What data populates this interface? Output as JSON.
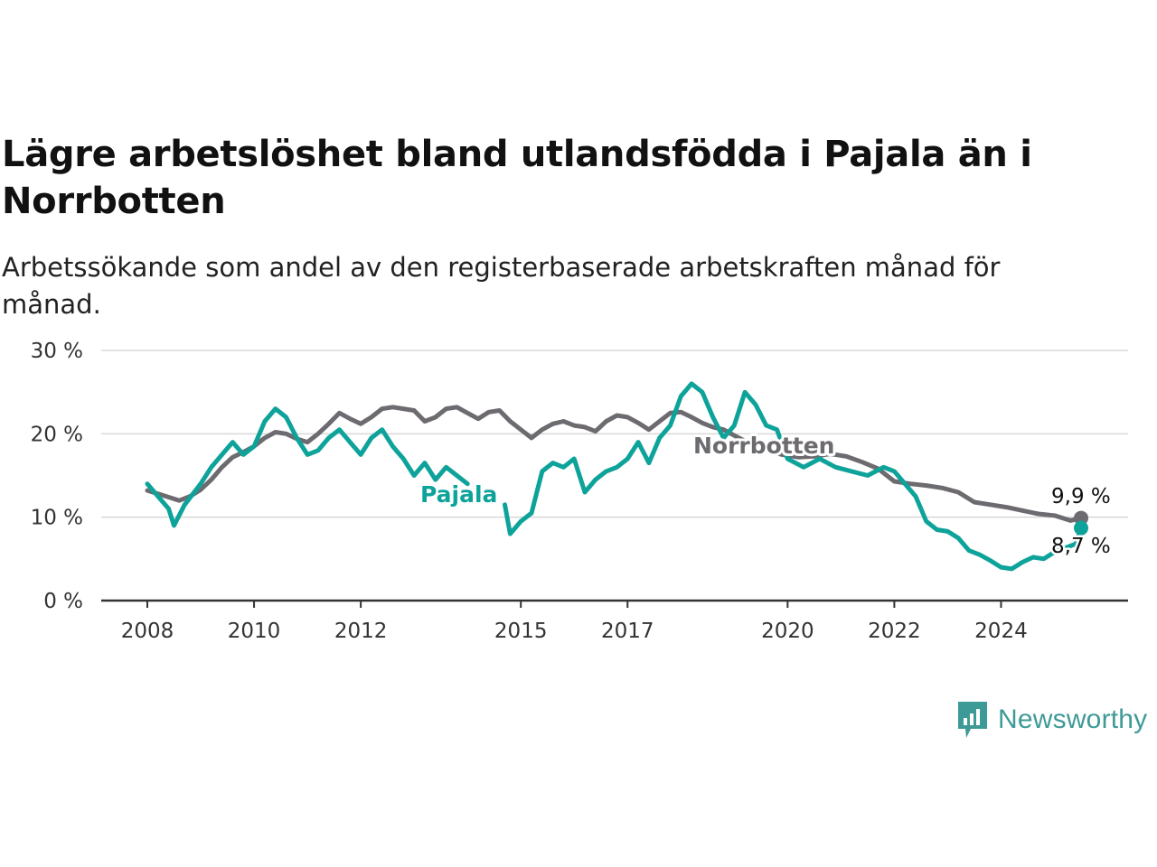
{
  "colors": {
    "pajala": "#0ea39a",
    "norrbotten": "#6d6a70",
    "grid": "#d8d8d8",
    "axis": "#333333",
    "brand": "#3e9a97"
  },
  "brand": {
    "name": "Newsworthy",
    "icon": "newsworthy-logo-icon"
  },
  "chart_data": {
    "type": "line",
    "title": "Lägre arbetslöshet bland utlandsfödda i Pajala än i Norrbotten",
    "subtitle": "Arbetssökande som andel av den registerbaserade arbetskraften månad för månad.",
    "ylim": [
      0,
      30
    ],
    "y_ticks": [
      0,
      10,
      20,
      30
    ],
    "y_tick_labels": [
      "0 %",
      "10 %",
      "20 %",
      "30 %"
    ],
    "x_ticks": [
      2008,
      2010,
      2012,
      2015,
      2017,
      2020,
      2022,
      2024
    ],
    "x_tick_labels": [
      "2008",
      "2010",
      "2012",
      "2015",
      "2017",
      "2020",
      "2022",
      "2024"
    ],
    "grid": true,
    "legend": "direct labels",
    "series": [
      {
        "name": "Norrbotten",
        "end_label": "9,9 %",
        "values": [
          [
            2008.0,
            13.2
          ],
          [
            2008.2,
            12.8
          ],
          [
            2008.4,
            12.4
          ],
          [
            2008.6,
            12.0
          ],
          [
            2008.8,
            12.5
          ],
          [
            2009.0,
            13.3
          ],
          [
            2009.2,
            14.5
          ],
          [
            2009.4,
            16.0
          ],
          [
            2009.6,
            17.2
          ],
          [
            2009.8,
            17.8
          ],
          [
            2010.0,
            18.5
          ],
          [
            2010.2,
            19.5
          ],
          [
            2010.4,
            20.2
          ],
          [
            2010.6,
            20.0
          ],
          [
            2010.8,
            19.4
          ],
          [
            2011.0,
            19.0
          ],
          [
            2011.2,
            20.0
          ],
          [
            2011.4,
            21.2
          ],
          [
            2011.6,
            22.5
          ],
          [
            2011.8,
            21.8
          ],
          [
            2012.0,
            21.2
          ],
          [
            2012.2,
            22.0
          ],
          [
            2012.4,
            23.0
          ],
          [
            2012.6,
            23.2
          ],
          [
            2012.8,
            23.0
          ],
          [
            2013.0,
            22.8
          ],
          [
            2013.2,
            21.5
          ],
          [
            2013.4,
            22.0
          ],
          [
            2013.6,
            23.0
          ],
          [
            2013.8,
            23.2
          ],
          [
            2014.0,
            22.5
          ],
          [
            2014.2,
            21.8
          ],
          [
            2014.4,
            22.6
          ],
          [
            2014.6,
            22.8
          ],
          [
            2014.8,
            21.5
          ],
          [
            2015.0,
            20.5
          ],
          [
            2015.2,
            19.5
          ],
          [
            2015.4,
            20.5
          ],
          [
            2015.6,
            21.2
          ],
          [
            2015.8,
            21.5
          ],
          [
            2016.0,
            21.0
          ],
          [
            2016.2,
            20.8
          ],
          [
            2016.4,
            20.3
          ],
          [
            2016.6,
            21.5
          ],
          [
            2016.8,
            22.2
          ],
          [
            2017.0,
            22.0
          ],
          [
            2017.2,
            21.3
          ],
          [
            2017.4,
            20.5
          ],
          [
            2017.6,
            21.5
          ],
          [
            2017.8,
            22.5
          ],
          [
            2018.0,
            22.6
          ],
          [
            2018.2,
            22.0
          ],
          [
            2018.4,
            21.3
          ],
          [
            2018.6,
            20.8
          ],
          [
            2018.8,
            20.5
          ],
          [
            2019.0,
            19.8
          ],
          [
            2019.3,
            18.8
          ],
          [
            2019.6,
            18.0
          ],
          [
            2019.9,
            17.5
          ],
          [
            2020.2,
            17.2
          ],
          [
            2020.5,
            17.3
          ],
          [
            2020.8,
            17.6
          ],
          [
            2021.1,
            17.3
          ],
          [
            2021.4,
            16.6
          ],
          [
            2021.7,
            15.8
          ],
          [
            2022.0,
            14.3
          ],
          [
            2022.3,
            14.0
          ],
          [
            2022.6,
            13.8
          ],
          [
            2022.9,
            13.5
          ],
          [
            2023.2,
            13.0
          ],
          [
            2023.5,
            11.8
          ],
          [
            2023.8,
            11.5
          ],
          [
            2024.1,
            11.2
          ],
          [
            2024.4,
            10.8
          ],
          [
            2024.7,
            10.4
          ],
          [
            2025.0,
            10.2
          ],
          [
            2025.3,
            9.6
          ],
          [
            2025.5,
            9.9
          ]
        ]
      },
      {
        "name": "Pajala",
        "end_label": "8,7 %",
        "values": [
          [
            2008.0,
            14.0
          ],
          [
            2008.2,
            12.5
          ],
          [
            2008.4,
            11.0
          ],
          [
            2008.5,
            9.0
          ],
          [
            2008.7,
            11.5
          ],
          [
            2009.0,
            14.0
          ],
          [
            2009.2,
            16.0
          ],
          [
            2009.4,
            17.5
          ],
          [
            2009.6,
            19.0
          ],
          [
            2009.8,
            17.5
          ],
          [
            2010.0,
            18.5
          ],
          [
            2010.2,
            21.5
          ],
          [
            2010.4,
            23.0
          ],
          [
            2010.6,
            22.0
          ],
          [
            2010.8,
            19.5
          ],
          [
            2011.0,
            17.5
          ],
          [
            2011.2,
            18.0
          ],
          [
            2011.4,
            19.5
          ],
          [
            2011.6,
            20.5
          ],
          [
            2011.8,
            19.0
          ],
          [
            2012.0,
            17.5
          ],
          [
            2012.2,
            19.5
          ],
          [
            2012.4,
            20.5
          ],
          [
            2012.6,
            18.5
          ],
          [
            2012.8,
            17.0
          ],
          [
            2013.0,
            15.0
          ],
          [
            2013.2,
            16.5
          ],
          [
            2013.4,
            14.5
          ],
          [
            2013.6,
            16.0
          ],
          [
            2013.8,
            15.0
          ],
          [
            2014.0,
            14.0
          ],
          [
            null,
            null
          ],
          [
            2014.7,
            11.5
          ],
          [
            2014.8,
            8.0
          ],
          [
            2015.0,
            9.5
          ],
          [
            2015.2,
            10.5
          ],
          [
            2015.4,
            15.5
          ],
          [
            2015.6,
            16.5
          ],
          [
            2015.8,
            16.0
          ],
          [
            2016.0,
            17.0
          ],
          [
            2016.2,
            13.0
          ],
          [
            2016.4,
            14.5
          ],
          [
            2016.6,
            15.5
          ],
          [
            2016.8,
            16.0
          ],
          [
            2017.0,
            17.0
          ],
          [
            2017.2,
            19.0
          ],
          [
            2017.4,
            16.5
          ],
          [
            2017.6,
            19.5
          ],
          [
            2017.8,
            21.0
          ],
          [
            2018.0,
            24.5
          ],
          [
            2018.2,
            26.0
          ],
          [
            2018.4,
            25.0
          ],
          [
            2018.6,
            22.0
          ],
          [
            2018.8,
            19.5
          ],
          [
            2019.0,
            21.0
          ],
          [
            2019.2,
            25.0
          ],
          [
            2019.4,
            23.5
          ],
          [
            2019.6,
            21.0
          ],
          [
            2019.8,
            20.5
          ],
          [
            2020.0,
            17.0
          ],
          [
            2020.3,
            16.0
          ],
          [
            2020.6,
            17.0
          ],
          [
            2020.9,
            16.0
          ],
          [
            2021.2,
            15.5
          ],
          [
            2021.5,
            15.0
          ],
          [
            2021.8,
            16.0
          ],
          [
            2022.0,
            15.5
          ],
          [
            2022.2,
            14.0
          ],
          [
            2022.4,
            12.5
          ],
          [
            2022.6,
            9.5
          ],
          [
            2022.8,
            8.5
          ],
          [
            2023.0,
            8.3
          ],
          [
            2023.2,
            7.5
          ],
          [
            2023.4,
            6.0
          ],
          [
            2023.6,
            5.5
          ],
          [
            2023.8,
            4.8
          ],
          [
            2024.0,
            4.0
          ],
          [
            2024.2,
            3.8
          ],
          [
            2024.4,
            4.6
          ],
          [
            2024.6,
            5.2
          ],
          [
            2024.8,
            5.0
          ],
          [
            2025.0,
            5.8
          ],
          [
            2025.2,
            6.3
          ],
          [
            2025.4,
            6.8
          ],
          [
            2025.5,
            8.7
          ]
        ]
      }
    ]
  }
}
